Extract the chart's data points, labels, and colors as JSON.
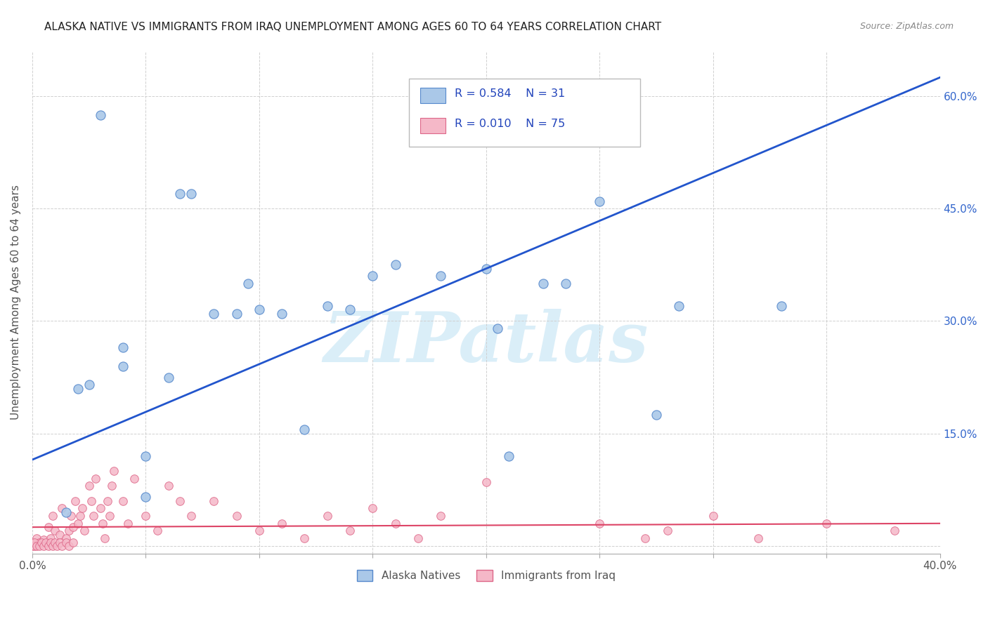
{
  "title": "ALASKA NATIVE VS IMMIGRANTS FROM IRAQ UNEMPLOYMENT AMONG AGES 60 TO 64 YEARS CORRELATION CHART",
  "source": "Source: ZipAtlas.com",
  "ylabel": "Unemployment Among Ages 60 to 64 years",
  "xlim": [
    0.0,
    0.4
  ],
  "ylim": [
    -0.01,
    0.66
  ],
  "xticks": [
    0.0,
    0.05,
    0.1,
    0.15,
    0.2,
    0.25,
    0.3,
    0.35,
    0.4
  ],
  "xticklabels": [
    "0.0%",
    "",
    "",
    "",
    "",
    "",
    "",
    "",
    "40.0%"
  ],
  "yticks": [
    0.0,
    0.15,
    0.3,
    0.45,
    0.6
  ],
  "yticklabels_right": [
    "",
    "15.0%",
    "30.0%",
    "45.0%",
    "60.0%"
  ],
  "yticklabels_left": [
    "",
    "",
    "",
    "",
    ""
  ],
  "background_color": "#ffffff",
  "grid_color": "#d0d0d0",
  "alaska_color": "#aac8e8",
  "iraq_color": "#f5b8c8",
  "alaska_edge": "#5588cc",
  "iraq_edge": "#dd6688",
  "alaska_line_color": "#2255cc",
  "iraq_line_color": "#dd4466",
  "watermark_text": "ZIPatlas",
  "watermark_color": "#daeef8",
  "legend_label_alaska": "Alaska Natives",
  "legend_label_iraq": "Immigrants from Iraq",
  "alaska_R": "0.584",
  "alaska_N": "31",
  "iraq_R": "0.010",
  "iraq_N": "75",
  "alaska_line_x": [
    0.0,
    0.4
  ],
  "alaska_line_y": [
    0.115,
    0.625
  ],
  "iraq_line_x": [
    0.0,
    0.4
  ],
  "iraq_line_y": [
    0.025,
    0.03
  ],
  "alaska_x": [
    0.015,
    0.025,
    0.03,
    0.04,
    0.04,
    0.05,
    0.05,
    0.06,
    0.065,
    0.07,
    0.08,
    0.09,
    0.095,
    0.1,
    0.11,
    0.12,
    0.13,
    0.14,
    0.15,
    0.16,
    0.18,
    0.2,
    0.205,
    0.21,
    0.225,
    0.235,
    0.25,
    0.275,
    0.285,
    0.33,
    0.02
  ],
  "alaska_y": [
    0.045,
    0.215,
    0.575,
    0.265,
    0.24,
    0.12,
    0.065,
    0.225,
    0.47,
    0.47,
    0.31,
    0.31,
    0.35,
    0.315,
    0.31,
    0.155,
    0.32,
    0.315,
    0.36,
    0.375,
    0.36,
    0.37,
    0.29,
    0.12,
    0.35,
    0.35,
    0.46,
    0.175,
    0.32,
    0.32,
    0.21
  ],
  "iraq_x": [
    0.0,
    0.002,
    0.003,
    0.005,
    0.007,
    0.008,
    0.009,
    0.01,
    0.012,
    0.013,
    0.015,
    0.016,
    0.017,
    0.018,
    0.019,
    0.02,
    0.021,
    0.022,
    0.023,
    0.025,
    0.026,
    0.027,
    0.028,
    0.03,
    0.031,
    0.032,
    0.033,
    0.034,
    0.035,
    0.036,
    0.04,
    0.042,
    0.045,
    0.05,
    0.055,
    0.06,
    0.065,
    0.07,
    0.08,
    0.09,
    0.1,
    0.11,
    0.12,
    0.13,
    0.14,
    0.15,
    0.16,
    0.17,
    0.18,
    0.2,
    0.25,
    0.27,
    0.28,
    0.3,
    0.32,
    0.35,
    0.38,
    0.0,
    0.001,
    0.001,
    0.002,
    0.003,
    0.004,
    0.005,
    0.006,
    0.007,
    0.008,
    0.009,
    0.01,
    0.011,
    0.012,
    0.013,
    0.015,
    0.016,
    0.018
  ],
  "iraq_y": [
    0.005,
    0.01,
    0.005,
    0.008,
    0.025,
    0.01,
    0.04,
    0.02,
    0.015,
    0.05,
    0.01,
    0.02,
    0.04,
    0.025,
    0.06,
    0.03,
    0.04,
    0.05,
    0.02,
    0.08,
    0.06,
    0.04,
    0.09,
    0.05,
    0.03,
    0.01,
    0.06,
    0.04,
    0.08,
    0.1,
    0.06,
    0.03,
    0.09,
    0.04,
    0.02,
    0.08,
    0.06,
    0.04,
    0.06,
    0.04,
    0.02,
    0.03,
    0.01,
    0.04,
    0.02,
    0.05,
    0.03,
    0.01,
    0.04,
    0.085,
    0.03,
    0.01,
    0.02,
    0.04,
    0.01,
    0.03,
    0.02,
    0.0,
    0.0,
    0.005,
    0.0,
    0.0,
    0.005,
    0.0,
    0.005,
    0.0,
    0.005,
    0.0,
    0.005,
    0.0,
    0.005,
    0.0,
    0.005,
    0.0,
    0.005
  ]
}
